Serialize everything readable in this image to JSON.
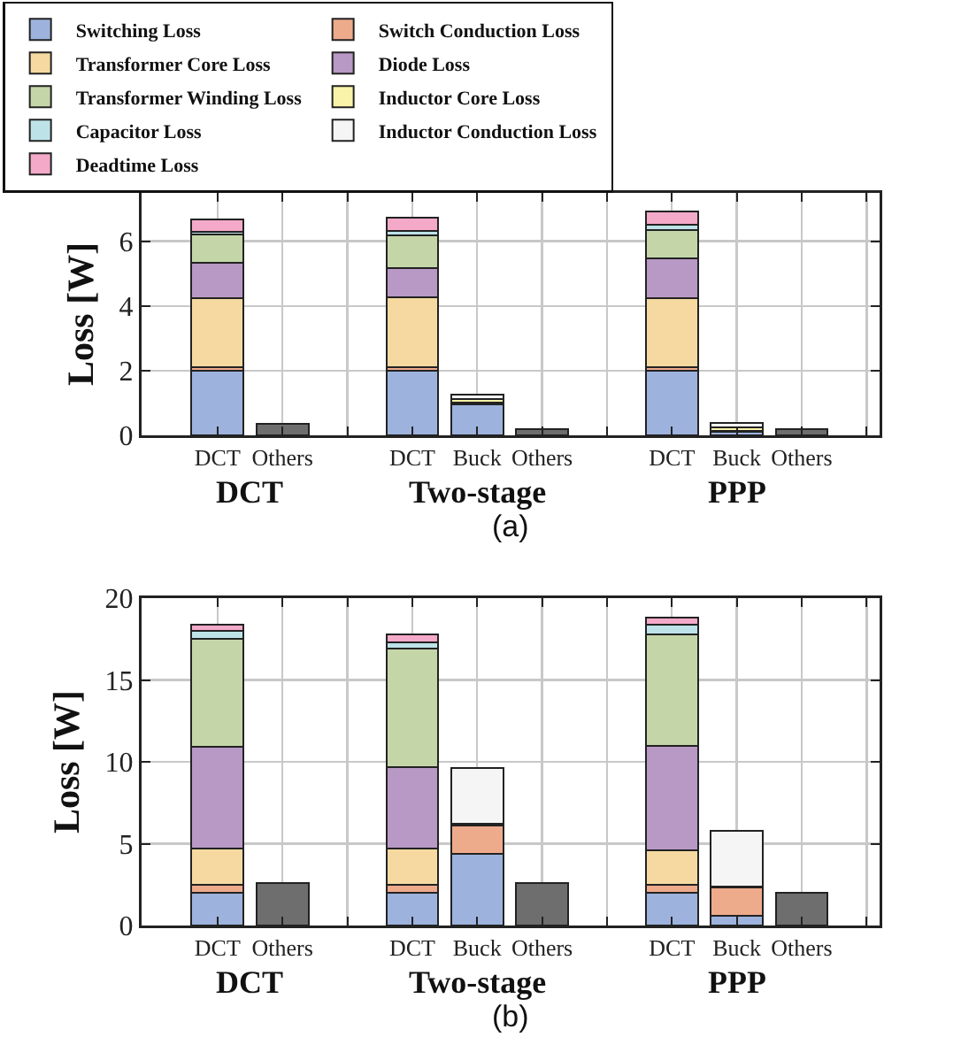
{
  "chart_data": [
    {
      "type": "bar",
      "stacked": true,
      "ylabel": "Loss [W]",
      "categories": [
        "DCT",
        "Others",
        null,
        "DCT",
        "Buck",
        "Others",
        null,
        "DCT",
        "Buck",
        "Others",
        null
      ],
      "ylim": [
        0,
        7.5
      ],
      "yticks": [
        0,
        2,
        4,
        6
      ],
      "grid": true,
      "legend": "top",
      "annotations": [
        "DCT",
        "Two-stage",
        "PPP",
        "(a)"
      ],
      "series": [
        {
          "name": "Switching Loss",
          "color": "#9db3dd",
          "values": [
            2.0,
            null,
            null,
            2.0,
            0.95,
            null,
            null,
            2.0,
            0.1,
            null,
            null
          ]
        },
        {
          "name": "Switch Conduction Loss",
          "color": "#eeab8c",
          "values": [
            0.1,
            null,
            null,
            0.12,
            0.05,
            null,
            null,
            0.1,
            0.05,
            null,
            null
          ]
        },
        {
          "name": "Transformer Core Loss",
          "color": "#f5d9a0",
          "values": [
            2.13,
            null,
            null,
            2.15,
            null,
            null,
            null,
            2.13,
            null,
            null,
            null
          ]
        },
        {
          "name": "Diode Loss",
          "color": "#b898c4",
          "values": [
            1.1,
            null,
            null,
            0.91,
            null,
            null,
            null,
            1.23,
            null,
            null,
            null
          ]
        },
        {
          "name": "Transformer Winding Loss",
          "color": "#c4d6a8",
          "values": [
            0.87,
            null,
            null,
            1.01,
            null,
            null,
            null,
            0.88,
            null,
            null,
            null
          ]
        },
        {
          "name": "Inductor Core Loss",
          "color": "#f8f3a8",
          "values": [
            null,
            null,
            null,
            null,
            0.12,
            null,
            null,
            null,
            0.1,
            null,
            null
          ]
        },
        {
          "name": "Capacitor Loss",
          "color": "#bde3e8",
          "values": [
            0.08,
            null,
            null,
            0.12,
            null,
            null,
            null,
            0.16,
            null,
            null,
            null
          ]
        },
        {
          "name": "Inductor Conduction Loss",
          "color": "#f5f5f5",
          "values": [
            null,
            null,
            null,
            null,
            0.15,
            null,
            null,
            null,
            0.14,
            null,
            null
          ]
        },
        {
          "name": "Deadtime Loss",
          "color": "#f4a9c9",
          "values": [
            0.4,
            null,
            null,
            0.42,
            null,
            null,
            null,
            0.43,
            null,
            null,
            null
          ]
        },
        {
          "color": "#6e6e6e",
          "values": [
            null,
            0.35,
            null,
            null,
            null,
            0.2,
            null,
            null,
            null,
            0.2,
            null
          ]
        }
      ]
    },
    {
      "type": "bar",
      "stacked": true,
      "ylabel": "Loss [W]",
      "categories": [
        "DCT",
        "Others",
        null,
        "DCT",
        "Buck",
        "Others",
        null,
        "DCT",
        "Buck",
        "Others",
        null
      ],
      "ylim": [
        0,
        20
      ],
      "yticks": [
        0,
        5,
        10,
        15,
        20
      ],
      "grid": true,
      "annotations": [
        "DCT",
        "Two-stage",
        "PPP",
        "(b)"
      ],
      "series": [
        {
          "color": "#9db3dd",
          "values": [
            2.0,
            null,
            null,
            2.0,
            4.4,
            null,
            null,
            2.0,
            0.6,
            null,
            null
          ]
        },
        {
          "color": "#eeab8c",
          "values": [
            0.5,
            null,
            null,
            0.5,
            1.7,
            null,
            null,
            0.5,
            1.7,
            null,
            null
          ]
        },
        {
          "color": "#f5d9a0",
          "values": [
            2.2,
            null,
            null,
            2.2,
            null,
            null,
            null,
            2.1,
            null,
            null,
            null
          ]
        },
        {
          "color": "#b898c4",
          "values": [
            6.2,
            null,
            null,
            5.0,
            null,
            null,
            null,
            6.4,
            null,
            null,
            null
          ]
        },
        {
          "color": "#c4d6a8",
          "values": [
            6.6,
            null,
            null,
            7.2,
            null,
            null,
            null,
            6.8,
            null,
            null,
            null
          ]
        },
        {
          "color": "#f8f3a8",
          "values": [
            null,
            null,
            null,
            null,
            0.1,
            null,
            null,
            null,
            0.1,
            null,
            null
          ]
        },
        {
          "color": "#bde3e8",
          "values": [
            0.5,
            null,
            null,
            0.4,
            null,
            null,
            null,
            0.6,
            null,
            null,
            null
          ]
        },
        {
          "color": "#f5f5f5",
          "values": [
            null,
            null,
            null,
            null,
            3.4,
            null,
            null,
            null,
            3.4,
            null,
            null
          ]
        },
        {
          "color": "#f4a9c9",
          "values": [
            0.4,
            null,
            null,
            0.5,
            null,
            null,
            null,
            0.4,
            null,
            null,
            null
          ]
        },
        {
          "color": "#6e6e6e",
          "values": [
            null,
            2.6,
            null,
            null,
            null,
            2.6,
            null,
            null,
            null,
            2.0,
            null
          ]
        }
      ]
    }
  ]
}
